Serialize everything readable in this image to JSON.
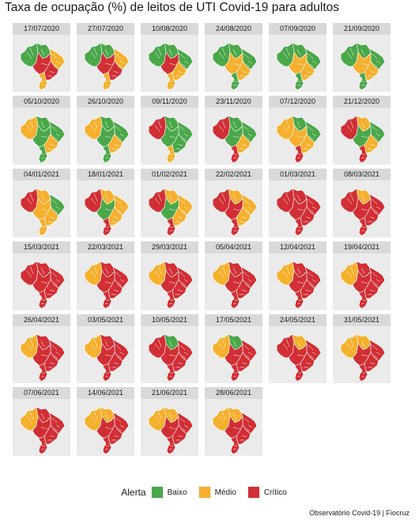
{
  "title": "Taxa de ocupação (%) de leitos de UTI Covid-19 para adultos",
  "source": "Observatório Covid-19 | Fiocruz",
  "legend": {
    "title": "Alerta",
    "items": [
      {
        "key": "baixo",
        "label": "Baixo",
        "color": "#4aa84a"
      },
      {
        "key": "medio",
        "label": "Médio",
        "color": "#f5b02e"
      },
      {
        "key": "critico",
        "label": "Crítico",
        "color": "#d12f35"
      }
    ]
  },
  "colors": {
    "panel_background": "#ebebeb",
    "strip": "#d9d9d9",
    "border": "#ffffff"
  },
  "regions": [
    "norte_oeste",
    "norte_leste",
    "nordeste",
    "centro_oeste",
    "sudeste",
    "sul"
  ],
  "panels": [
    {
      "date": "17/07/2020",
      "status": [
        "baixo",
        "baixo",
        "medio",
        "critico",
        "critico",
        "medio"
      ]
    },
    {
      "date": "27/07/2020",
      "status": [
        "baixo",
        "baixo",
        "medio",
        "critico",
        "critico",
        "medio"
      ]
    },
    {
      "date": "10/08/2020",
      "status": [
        "baixo",
        "baixo",
        "baixo",
        "critico",
        "medio",
        "medio"
      ]
    },
    {
      "date": "24/08/2020",
      "status": [
        "baixo",
        "baixo",
        "baixo",
        "medio",
        "medio",
        "baixo"
      ]
    },
    {
      "date": "07/09/2020",
      "status": [
        "baixo",
        "baixo",
        "baixo",
        "medio",
        "medio",
        "baixo"
      ]
    },
    {
      "date": "21/09/2020",
      "status": [
        "baixo",
        "baixo",
        "baixo",
        "medio",
        "medio",
        "baixo"
      ]
    },
    {
      "date": "05/10/2020",
      "status": [
        "medio",
        "baixo",
        "baixo",
        "baixo",
        "medio",
        "baixo"
      ]
    },
    {
      "date": "26/10/2020",
      "status": [
        "medio",
        "baixo",
        "baixo",
        "baixo",
        "medio",
        "baixo"
      ]
    },
    {
      "date": "09/11/2020",
      "status": [
        "critico",
        "baixo",
        "baixo",
        "baixo",
        "baixo",
        "medio"
      ]
    },
    {
      "date": "23/11/2020",
      "status": [
        "critico",
        "baixo",
        "baixo",
        "baixo",
        "medio",
        "critico"
      ]
    },
    {
      "date": "07/12/2020",
      "status": [
        "medio",
        "baixo",
        "baixo",
        "medio",
        "medio",
        "critico"
      ]
    },
    {
      "date": "21/12/2020",
      "status": [
        "critico",
        "medio",
        "baixo",
        "baixo",
        "medio",
        "critico"
      ]
    },
    {
      "date": "04/01/2021",
      "status": [
        "critico",
        "medio",
        "baixo",
        "medio",
        "medio",
        "medio"
      ]
    },
    {
      "date": "18/01/2021",
      "status": [
        "critico",
        "medio",
        "medio",
        "baixo",
        "medio",
        "critico"
      ]
    },
    {
      "date": "01/02/2021",
      "status": [
        "critico",
        "medio",
        "medio",
        "baixo",
        "medio",
        "critico"
      ]
    },
    {
      "date": "22/02/2021",
      "status": [
        "critico",
        "medio",
        "medio",
        "critico",
        "medio",
        "critico"
      ]
    },
    {
      "date": "01/03/2021",
      "status": [
        "critico",
        "critico",
        "critico",
        "critico",
        "critico",
        "critico"
      ]
    },
    {
      "date": "08/03/2021",
      "status": [
        "critico",
        "medio",
        "critico",
        "critico",
        "critico",
        "critico"
      ]
    },
    {
      "date": "15/03/2021",
      "status": [
        "critico",
        "critico",
        "critico",
        "critico",
        "critico",
        "critico"
      ]
    },
    {
      "date": "22/03/2021",
      "status": [
        "medio",
        "critico",
        "critico",
        "critico",
        "critico",
        "critico"
      ]
    },
    {
      "date": "29/03/2021",
      "status": [
        "medio",
        "critico",
        "critico",
        "critico",
        "critico",
        "critico"
      ]
    },
    {
      "date": "05/04/2021",
      "status": [
        "medio",
        "critico",
        "critico",
        "critico",
        "critico",
        "critico"
      ]
    },
    {
      "date": "12/04/2021",
      "status": [
        "medio",
        "critico",
        "critico",
        "critico",
        "critico",
        "critico"
      ]
    },
    {
      "date": "19/04/2021",
      "status": [
        "medio",
        "critico",
        "critico",
        "critico",
        "critico",
        "critico"
      ]
    },
    {
      "date": "26/04/2021",
      "status": [
        "medio",
        "critico",
        "critico",
        "critico",
        "critico",
        "critico"
      ]
    },
    {
      "date": "03/05/2021",
      "status": [
        "medio",
        "critico",
        "critico",
        "critico",
        "critico",
        "critico"
      ]
    },
    {
      "date": "10/05/2021",
      "status": [
        "critico",
        "baixo",
        "critico",
        "critico",
        "critico",
        "critico"
      ]
    },
    {
      "date": "17/05/2021",
      "status": [
        "medio",
        "baixo",
        "critico",
        "critico",
        "critico",
        "critico"
      ]
    },
    {
      "date": "24/05/2021",
      "status": [
        "critico",
        "medio",
        "critico",
        "critico",
        "critico",
        "critico"
      ]
    },
    {
      "date": "31/05/2021",
      "status": [
        "medio",
        "medio",
        "critico",
        "critico",
        "critico",
        "critico"
      ]
    },
    {
      "date": "07/06/2021",
      "status": [
        "medio",
        "critico",
        "critico",
        "critico",
        "critico",
        "critico"
      ]
    },
    {
      "date": "14/06/2021",
      "status": [
        "medio",
        "medio",
        "critico",
        "critico",
        "critico",
        "critico"
      ]
    },
    {
      "date": "21/06/2021",
      "status": [
        "medio",
        "medio",
        "critico",
        "critico",
        "critico",
        "critico"
      ]
    },
    {
      "date": "28/06/2021",
      "status": [
        "medio",
        "medio",
        "critico",
        "critico",
        "critico",
        "critico"
      ]
    }
  ]
}
